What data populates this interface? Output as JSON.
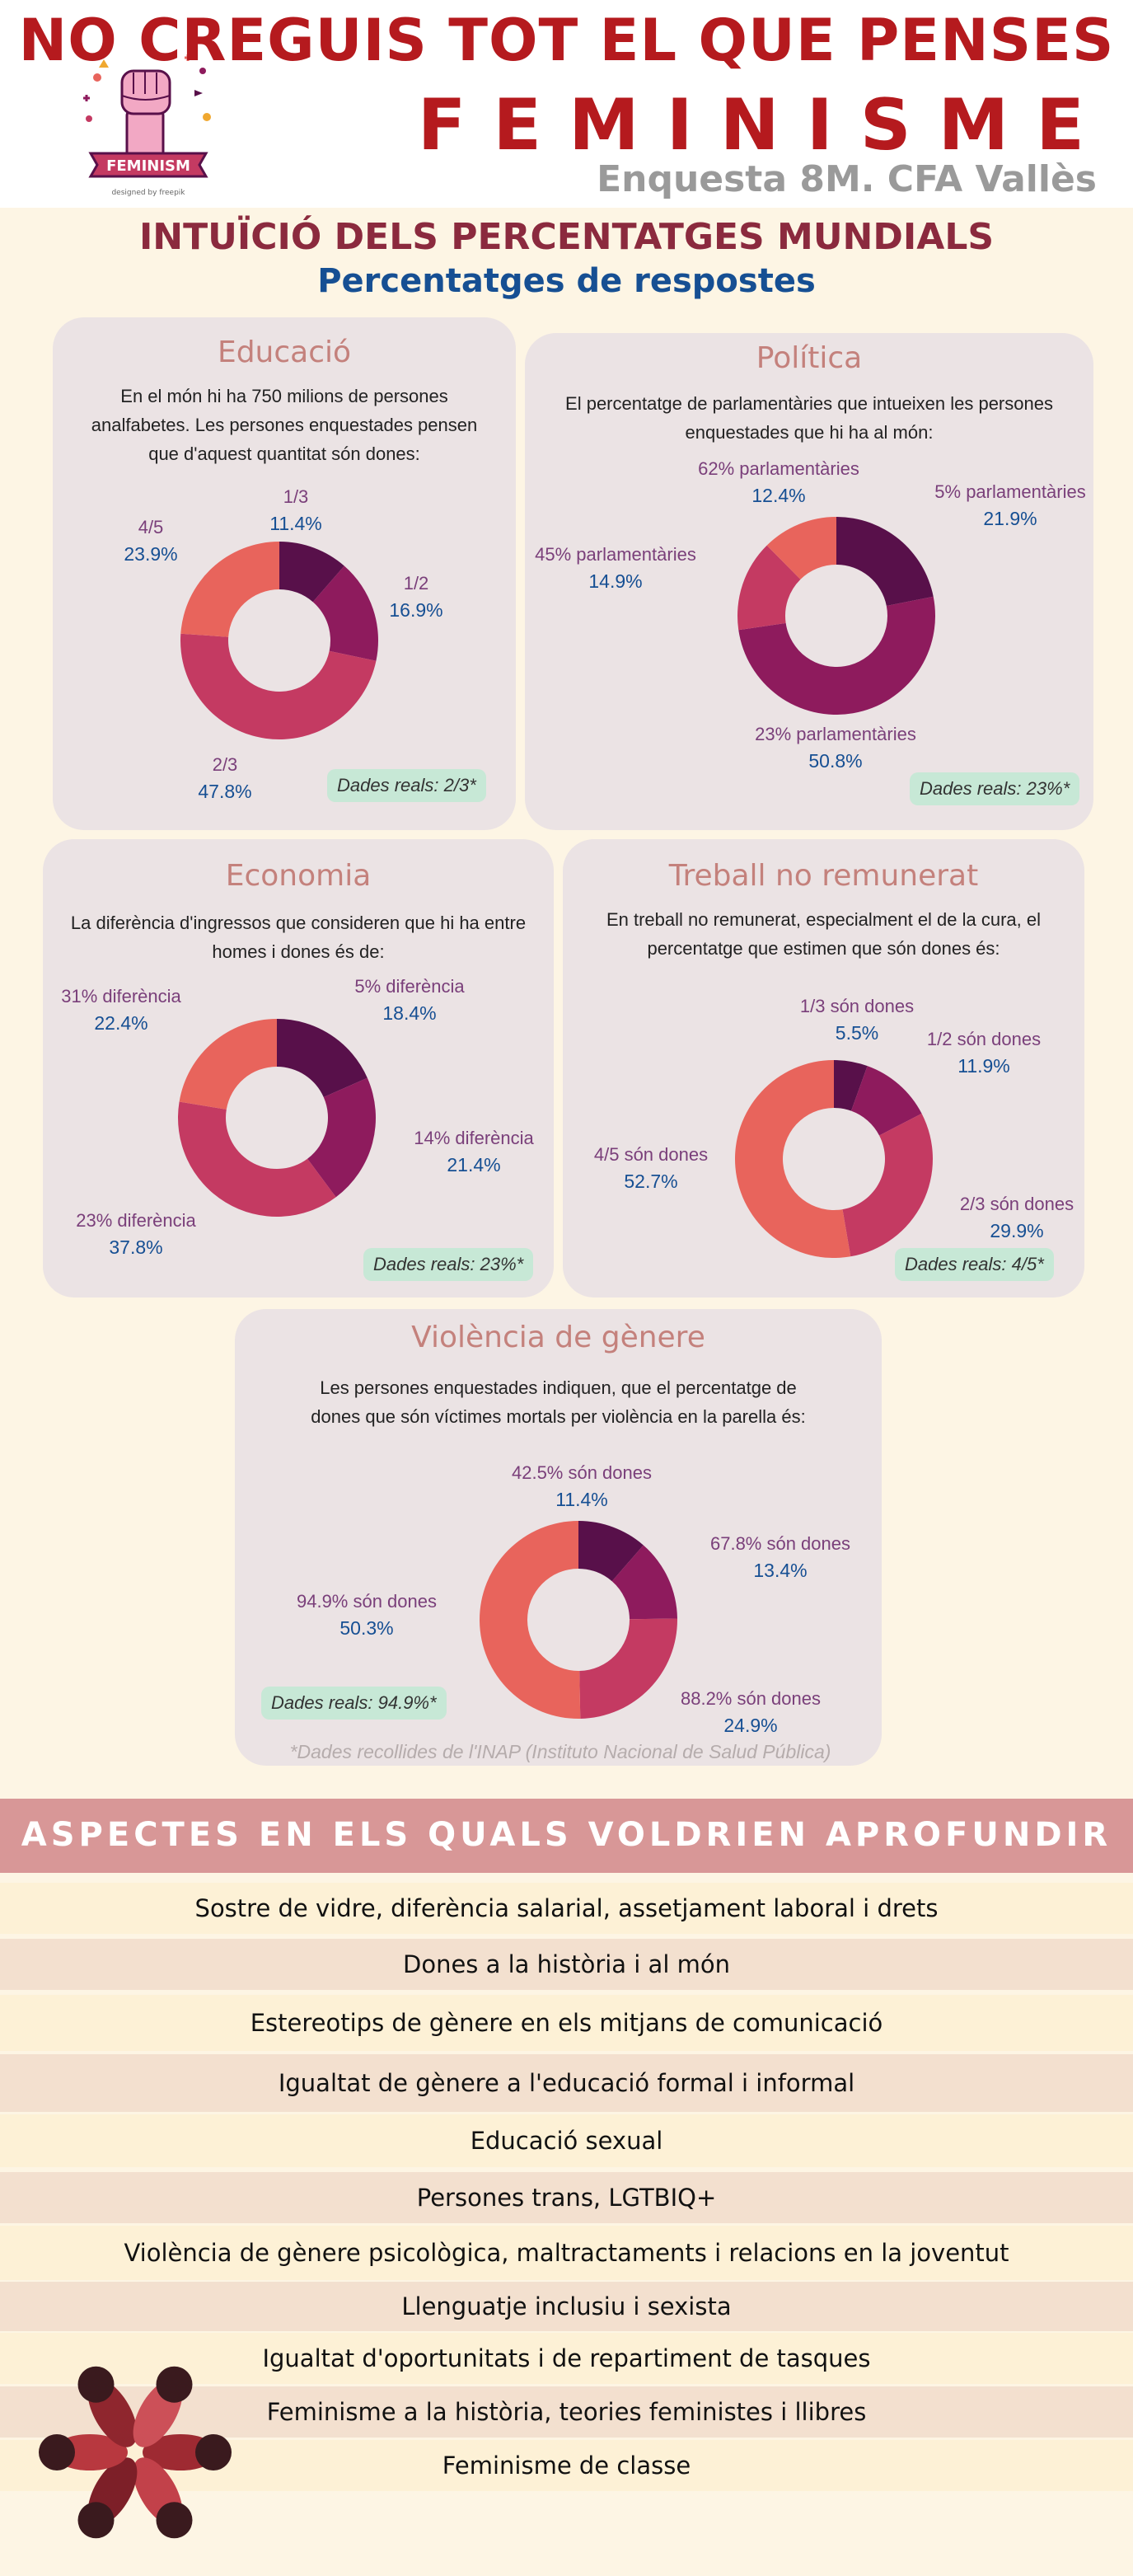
{
  "header": {
    "title": "NO CREGUIS TOT EL QUE PENSES",
    "brand": "FEMINISME",
    "survey": "Enquesta 8M. CFA Vallès",
    "logo_text": "FEMINISM",
    "logo_credit": "designed by freepik"
  },
  "section": {
    "title": "INTUÏCIÓ DELS PERCENTATGES MUNDIALS",
    "subtitle": "Percentatges de respostes"
  },
  "colors": [
    "#58104a",
    "#8e1b5d",
    "#c43a62",
    "#e8645c"
  ],
  "chart_data": [
    {
      "type": "pie",
      "title": "Educació",
      "description": "En el món hi ha 750 milions de persones analfabetes. Les persones enquestades pensen que d'aquest quantitat són dones:",
      "categories": [
        "1/3",
        "1/2",
        "2/3",
        "4/5"
      ],
      "values": [
        11.4,
        16.9,
        47.8,
        23.9
      ],
      "value_labels": [
        "11.4%",
        "16.9%",
        "47.8%",
        "23.9%"
      ],
      "real_data": "Dades reals: 2/3*"
    },
    {
      "type": "pie",
      "title": "Política",
      "description": "El percentatge de parlamentàries que intueixen les persones enquestades que hi ha al món:",
      "categories": [
        "5% parlamentàries",
        "23% parlamentàries",
        "45% parlamentàries",
        "62% parlamentàries"
      ],
      "values": [
        21.9,
        50.8,
        14.9,
        12.4
      ],
      "value_labels": [
        "21.9%",
        "50.8%",
        "14.9%",
        "12.4%"
      ],
      "real_data": "Dades reals: 23%*"
    },
    {
      "type": "pie",
      "title": "Economia",
      "description": "La diferència d'ingressos que consideren que hi ha entre homes i dones és de:",
      "categories": [
        "5% diferència",
        "14% diferència",
        "23% diferència",
        "31% diferència"
      ],
      "values": [
        18.4,
        21.4,
        37.8,
        22.4
      ],
      "value_labels": [
        "18.4%",
        "21.4%",
        "37.8%",
        "22.4%"
      ],
      "real_data": "Dades reals: 23%*"
    },
    {
      "type": "pie",
      "title": "Treball no remunerat",
      "description": "En treball no remunerat, especialment el de la cura, el percentatge que estimen que són dones és:",
      "categories": [
        "1/3 són dones",
        "1/2 són dones",
        "2/3 són dones",
        "4/5 són dones"
      ],
      "values": [
        5.5,
        11.9,
        29.9,
        52.7
      ],
      "value_labels": [
        "5.5%",
        "11.9%",
        "29.9%",
        "52.7%"
      ],
      "real_data": "Dades reals: 4/5*"
    },
    {
      "type": "pie",
      "title": "Violència de gènere",
      "description": "Les persones enquestades indiquen, que el percentatge de dones que són víctimes mortals per violència en la parella és:",
      "categories": [
        "42.5% són dones",
        "67.8% són dones",
        "88.2% són dones",
        "94.9% són dones"
      ],
      "values": [
        11.4,
        13.4,
        24.9,
        50.3
      ],
      "value_labels": [
        "11.4%",
        "13.4%",
        "24.9%",
        "50.3%"
      ],
      "real_data": "Dades reals: 94.9%*"
    }
  ],
  "source_note": "*Dades recollides de l'INAP (Instituto Nacional de Salud Pública)",
  "aspects": {
    "title": "ASPECTES EN ELS QUALS VOLDRIEN APROFUNDIR",
    "items": [
      "Sostre de vidre, diferència salarial, assetjament laboral i drets",
      "Dones a la història i al món",
      "Estereotips de gènere en els mitjans de comunicació",
      "Igualtat de gènere a l'educació formal i informal",
      "Educació sexual",
      "Persones trans, LGTBIQ+",
      "Violència de gènere psicològica, maltractaments i relacions en la joventut",
      "Llenguatje inclusiu i sexista",
      "Igualtat d'oportunitats i de repartiment de tasques",
      "Feminisme a la història, teories feministes i llibres",
      "Feminisme de classe"
    ],
    "row_colors": [
      "#fdf1d6",
      "#f3e0cf"
    ]
  }
}
